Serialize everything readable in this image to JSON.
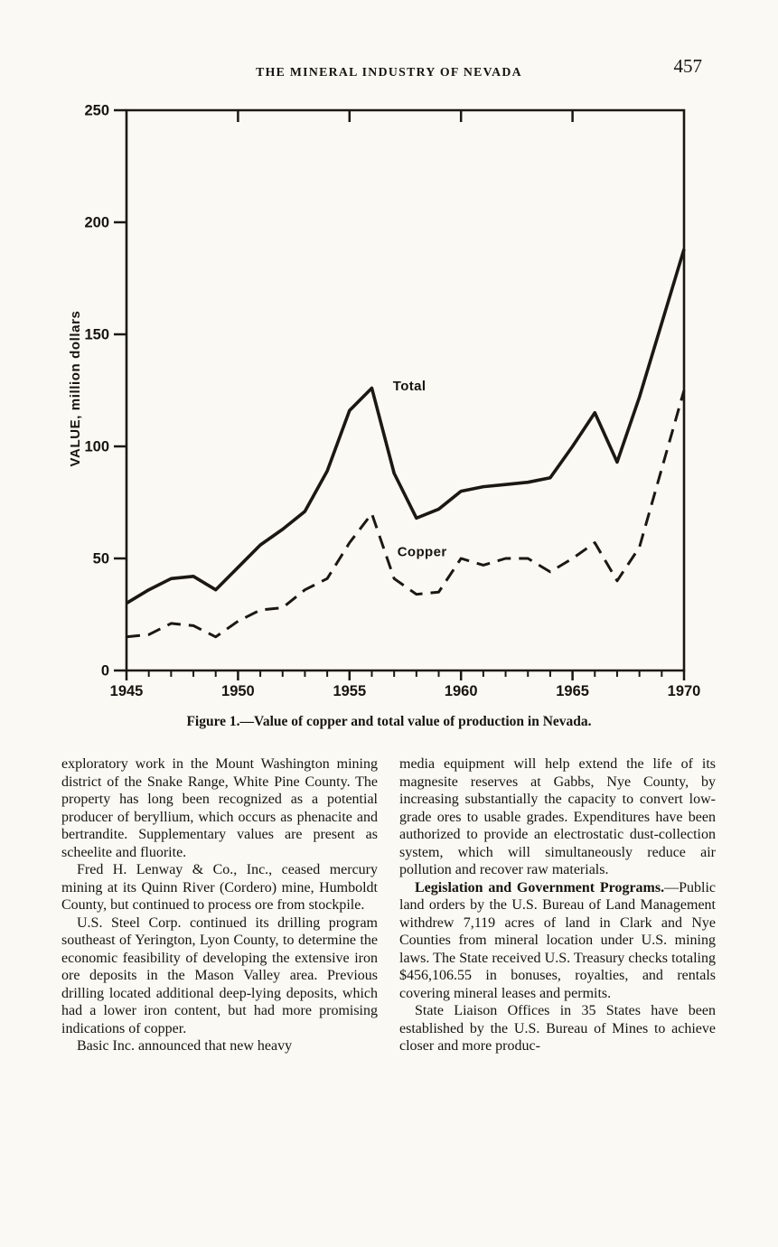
{
  "page": {
    "header_title": "THE MINERAL INDUSTRY OF NEVADA",
    "page_number": "457"
  },
  "figure": {
    "caption": "Figure 1.—Value of copper and total value of production in Nevada."
  },
  "chart_data": {
    "type": "line",
    "title": "",
    "xlabel": "",
    "ylabel": "VALUE, million dollars",
    "xlim": [
      1945,
      1970
    ],
    "ylim": [
      0,
      250
    ],
    "grid": false,
    "x": [
      1945,
      1946,
      1947,
      1948,
      1949,
      1950,
      1951,
      1952,
      1953,
      1954,
      1955,
      1956,
      1957,
      1958,
      1959,
      1960,
      1961,
      1962,
      1963,
      1964,
      1965,
      1966,
      1967,
      1968,
      1969,
      1970
    ],
    "xticks_major": [
      1945,
      1950,
      1955,
      1960,
      1965,
      1970
    ],
    "yticks": [
      0,
      50,
      100,
      150,
      200,
      250
    ],
    "series": [
      {
        "name": "Total",
        "style": "solid",
        "values": [
          30,
          36,
          41,
          42,
          36,
          46,
          56,
          63,
          71,
          89,
          116,
          126,
          88,
          68,
          72,
          80,
          82,
          83,
          84,
          86,
          100,
          115,
          93,
          122,
          155,
          188
        ]
      },
      {
        "name": "Copper",
        "style": "dashed",
        "values": [
          15,
          16,
          21,
          20,
          15,
          22,
          27,
          28,
          36,
          41,
          57,
          70,
          41,
          34,
          35,
          50,
          47,
          50,
          50,
          44,
          50,
          57,
          40,
          55,
          90,
          125
        ]
      }
    ],
    "annotations": [
      {
        "text": "Total",
        "x": 1956.7,
        "y": 127
      },
      {
        "text": "Copper",
        "x": 1956.9,
        "y": 53
      }
    ],
    "line_color": "#1b1813"
  },
  "article": {
    "columns": [
      {
        "name": "left",
        "paragraphs": [
          {
            "text": "exploratory work in the Mount Washington mining district of the Snake Range, White Pine County. The property has long been recognized as a potential producer of beryllium, which occurs as phenacite and bertrandite. Supplementary values are present as scheelite and fluorite."
          },
          {
            "text": "Fred H. Lenway & Co., Inc., ceased mercury mining at its Quinn River (Cordero) mine, Humboldt County, but continued to process ore from stockpile."
          },
          {
            "text": "U.S. Steel Corp. continued its drilling program southeast of Yerington, Lyon County, to determine the economic feasibility of developing the extensive iron ore deposits in the Mason Valley area. Previous drilling located additional deep-lying deposits, which had a lower iron content, but had more promising indications of copper."
          },
          {
            "text": "Basic Inc. announced that new heavy"
          }
        ]
      },
      {
        "name": "right",
        "paragraphs": [
          {
            "text": "media equipment will help extend the life of its magnesite reserves at Gabbs, Nye County, by increasing substantially the capacity to convert low-grade ores to usable grades. Expenditures have been authorized to provide an electrostatic dust-collection system, which will simultaneously reduce air pollution and recover raw materials."
          },
          {
            "lead": "Legislation and Government Programs.",
            "text": "—Public land orders by the U.S. Bureau of Land Management withdrew 7,119 acres of land in Clark and Nye Counties from mineral location under U.S. mining laws. The State received U.S. Treasury checks totaling $456,106.55 in bonuses, royalties, and rentals covering mineral leases and permits."
          },
          {
            "text": "State Liaison Offices in 35 States have been established by the U.S. Bureau of Mines to achieve closer and more produc-"
          }
        ]
      }
    ]
  }
}
